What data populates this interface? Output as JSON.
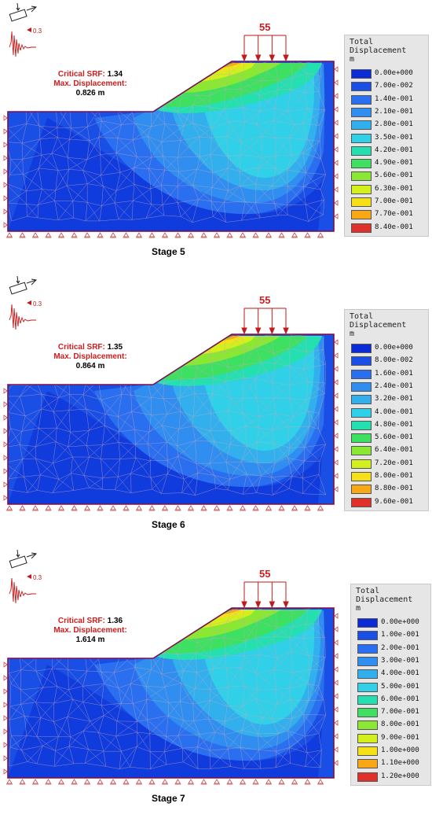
{
  "stages": [
    {
      "id": "stage-5",
      "label": "Stage 5",
      "load": "55",
      "seismic": "0.3",
      "srf_label": "Critical  SRF:",
      "srf_value": "1.34",
      "disp_label": "Max. Displacement:",
      "disp_value": "0.826 m",
      "legend": {
        "title": [
          "Total",
          "Displacement",
          "m"
        ],
        "values": [
          "0.00e+000",
          "7.00e-002",
          "1.40e-001",
          "2.10e-001",
          "2.80e-001",
          "3.50e-001",
          "4.20e-001",
          "4.90e-001",
          "5.60e-001",
          "6.30e-001",
          "7.00e-001",
          "7.70e-001",
          "8.40e-001"
        ]
      }
    },
    {
      "id": "stage-6",
      "label": "Stage 6",
      "load": "55",
      "seismic": "0.3",
      "srf_label": "Critical  SRF:",
      "srf_value": "1.35",
      "disp_label": "Max. Displacement:",
      "disp_value": "0.864 m",
      "legend": {
        "title": [
          "Total",
          "Displacement",
          "m"
        ],
        "values": [
          "0.00e+000",
          "8.00e-002",
          "1.60e-001",
          "2.40e-001",
          "3.20e-001",
          "4.00e-001",
          "4.80e-001",
          "5.60e-001",
          "6.40e-001",
          "7.20e-001",
          "8.00e-001",
          "8.80e-001",
          "9.60e-001"
        ]
      }
    },
    {
      "id": "stage-7",
      "label": "Stage 7",
      "load": "55",
      "seismic": "0.3",
      "srf_label": "Critical  SRF:",
      "srf_value": "1.36",
      "disp_label": "Max. Displacement:",
      "disp_value": "1.614 m",
      "legend": {
        "title": [
          "Total",
          "Displacement",
          "m"
        ],
        "values": [
          "0.00e+000",
          "1.00e-001",
          "2.00e-001",
          "3.00e-001",
          "4.00e-001",
          "5.00e-001",
          "6.00e-001",
          "7.00e-001",
          "8.00e-001",
          "9.00e-001",
          "1.00e+000",
          "1.10e+000",
          "1.20e+000"
        ]
      }
    }
  ],
  "colors": {
    "scale": [
      "#0a2bd6",
      "#1a4fe6",
      "#2a6ff0",
      "#2f8ef0",
      "#32b0ee",
      "#2fd0e8",
      "#24e0b0",
      "#3de060",
      "#8ae832",
      "#d4f01c",
      "#f6e018",
      "#f7a814",
      "#e0302a"
    ],
    "outline": "#7a0f4a",
    "support": "#c24a4a",
    "load": "#c21a1a",
    "mesh": "#c9a8b8"
  }
}
